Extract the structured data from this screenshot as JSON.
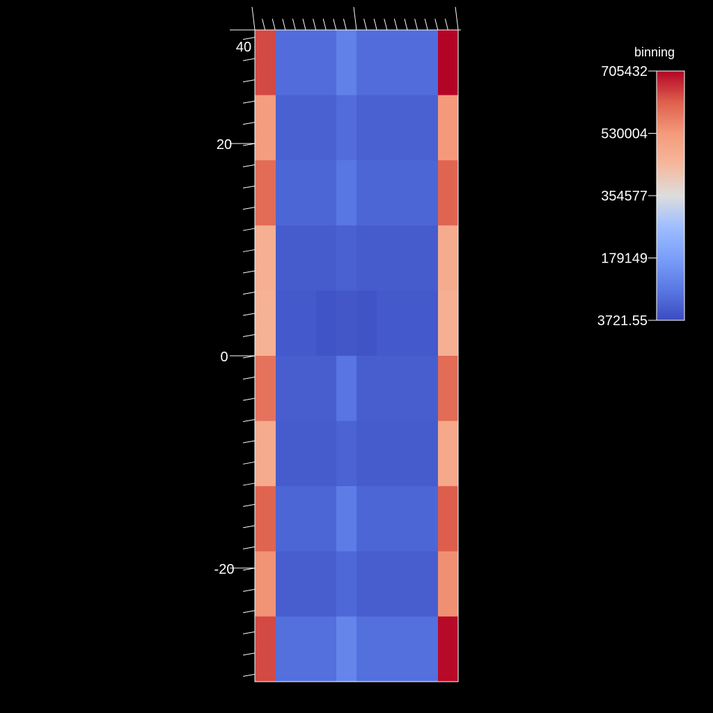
{
  "chart_data": {
    "type": "heatmap",
    "title": "",
    "y_ticks": [
      {
        "value": 40,
        "label": "40"
      },
      {
        "value": 20,
        "label": "20"
      },
      {
        "value": 0,
        "label": "0"
      },
      {
        "value": -20,
        "label": "-20"
      }
    ],
    "ylim": [
      -30.7,
      30.7
    ],
    "columns": 9,
    "rows": 10,
    "values": [
      [
        640000,
        70000,
        70000,
        70000,
        110000,
        70000,
        70000,
        70000,
        705432
      ],
      [
        520000,
        45000,
        45000,
        45000,
        70000,
        45000,
        45000,
        45000,
        530000
      ],
      [
        600000,
        55000,
        55000,
        55000,
        90000,
        55000,
        55000,
        55000,
        610000
      ],
      [
        470000,
        35000,
        35000,
        35000,
        45000,
        35000,
        35000,
        35000,
        480000
      ],
      [
        460000,
        30000,
        30000,
        20000,
        25000,
        20000,
        30000,
        30000,
        470000
      ],
      [
        590000,
        40000,
        40000,
        40000,
        85000,
        40000,
        40000,
        40000,
        600000
      ],
      [
        480000,
        35000,
        35000,
        35000,
        50000,
        35000,
        35000,
        35000,
        490000
      ],
      [
        610000,
        55000,
        55000,
        55000,
        100000,
        55000,
        55000,
        55000,
        620000
      ],
      [
        540000,
        40000,
        40000,
        40000,
        60000,
        40000,
        40000,
        40000,
        545000
      ],
      [
        640000,
        75000,
        75000,
        75000,
        120000,
        75000,
        75000,
        75000,
        700000
      ]
    ],
    "colorbar": {
      "title": "binning",
      "min": 3721.55,
      "max": 705432,
      "ticks": [
        "705432",
        "530004",
        "354577",
        "179149",
        "3721.55"
      ],
      "colormap": "coolwarm"
    },
    "grid": false,
    "legend_position": "right"
  }
}
